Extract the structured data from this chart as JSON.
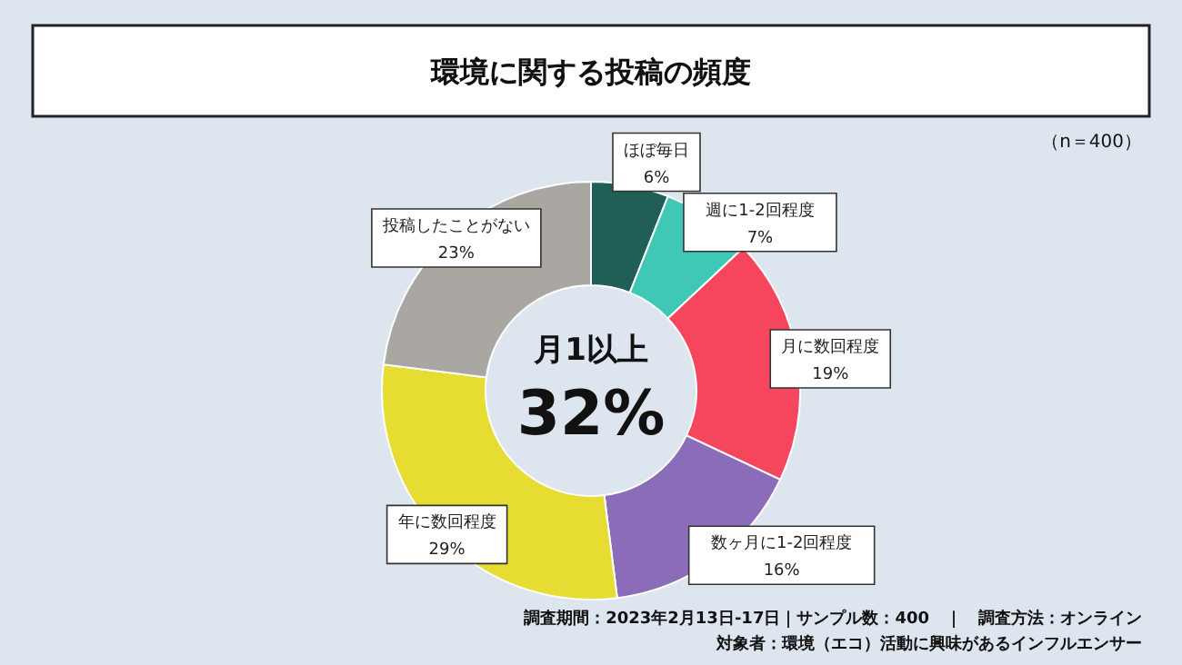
{
  "chart_data": {
    "type": "donut",
    "title": "環境に関する投稿の頻度",
    "categories": [
      "ほぼ毎日",
      "週に1-2回程度",
      "月に数回程度",
      "数ヶ月に1-2回程度",
      "年に数回程度",
      "投稿したことがない"
    ],
    "values": [
      6,
      7,
      19,
      16,
      29,
      23
    ],
    "value_labels": [
      "6%",
      "7%",
      "19%",
      "16%",
      "29%",
      "23%"
    ],
    "colors": [
      "#1f5f56",
      "#3ec8b5",
      "#f5465e",
      "#8a6cb8",
      "#e6dc32",
      "#aaa6a2"
    ],
    "annotations": [
      "（n＝400）",
      "月1以上",
      "32%",
      "調査期間：2023年2月13日-17日｜サンプル数：400　｜　調査方法：オンライン",
      "対象者：環境（エコ）活動に興味があるインフルエンサー"
    ]
  }
}
